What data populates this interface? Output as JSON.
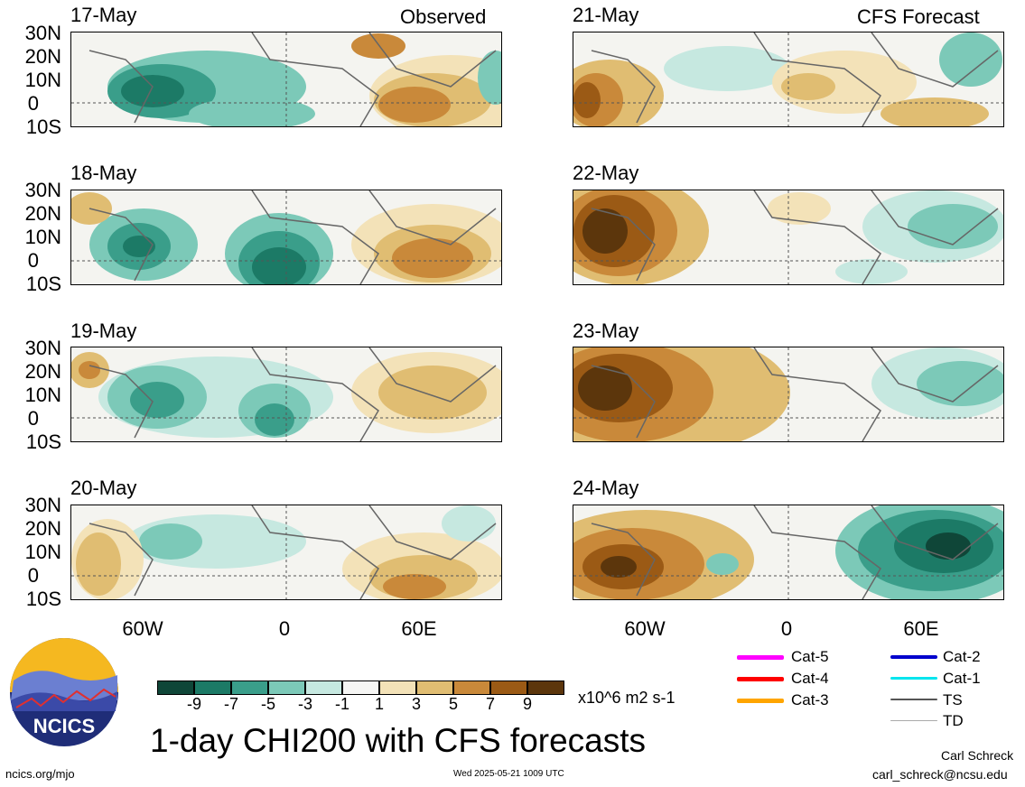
{
  "header": {
    "left_label": "Observed",
    "right_label": "CFS Forecast"
  },
  "left_panels": [
    {
      "date": "17-May"
    },
    {
      "date": "18-May"
    },
    {
      "date": "19-May"
    },
    {
      "date": "20-May"
    }
  ],
  "right_panels": [
    {
      "date": "21-May"
    },
    {
      "date": "22-May"
    },
    {
      "date": "23-May"
    },
    {
      "date": "24-May"
    }
  ],
  "lat_labels": [
    "30N",
    "20N",
    "10N",
    "0",
    "10S"
  ],
  "lon_labels": [
    "60W",
    "0",
    "60E"
  ],
  "colorbar": {
    "tick_labels": [
      "-9",
      "-7",
      "-5",
      "-3",
      "-1",
      "1",
      "3",
      "5",
      "7",
      "9"
    ],
    "colors": [
      "#0f4638",
      "#1c7a66",
      "#3a9e8a",
      "#7cc9b8",
      "#c6e8e0",
      "#f6f6f4",
      "#f3e2b8",
      "#e0bd72",
      "#c9893a",
      "#9b5a15",
      "#5c360c"
    ],
    "units": "x10^6 m2 s-1"
  },
  "legend": [
    {
      "label": "Cat-5",
      "color": "#ff00ff"
    },
    {
      "label": "Cat-4",
      "color": "#ff0000"
    },
    {
      "label": "Cat-3",
      "color": "#ffa500"
    },
    {
      "label": "Cat-2",
      "color": "#0000cd"
    },
    {
      "label": "Cat-1",
      "color": "#00e5ee"
    },
    {
      "label": "TS",
      "color": "#555555"
    },
    {
      "label": "TD",
      "color": "#aaaaaa"
    }
  ],
  "logo": {
    "text": "NCICS"
  },
  "title": "1-day CHI200 with CFS forecasts",
  "footer": {
    "url": "ncics.org/mjo",
    "timestamp": "Wed 2025-05-21 1009 UTC",
    "author": "Carl Schreck",
    "email": "carl_schreck@ncsu.edu"
  }
}
